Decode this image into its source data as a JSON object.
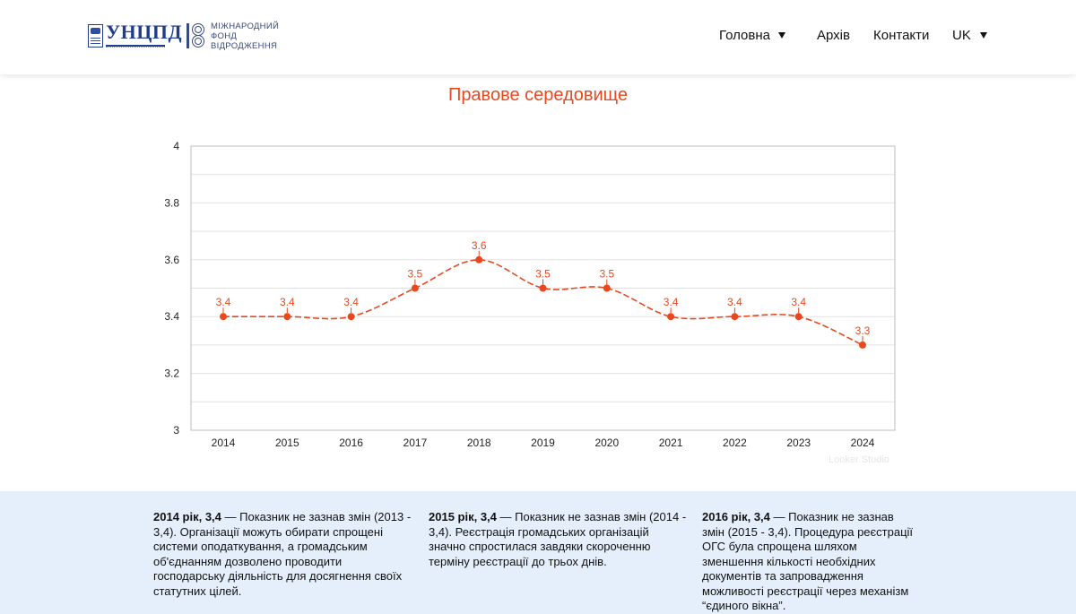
{
  "header": {
    "logo1": {
      "text": "УНЦПД",
      "icon": "book-emblem-icon"
    },
    "logo2": {
      "lines": [
        "МІЖНАРОДНИЙ",
        "ФОНД",
        "ВІДРОДЖЕННЯ"
      ],
      "icon": "irf-emblem-icon"
    },
    "nav": [
      {
        "label": "Головна",
        "has_dropdown": true
      },
      {
        "label": "Архів",
        "has_dropdown": false
      },
      {
        "label": "Контакти",
        "has_dropdown": false
      },
      {
        "label": "UK",
        "has_dropdown": true
      }
    ]
  },
  "watermark": "Looker Studio",
  "chart_data": {
    "type": "line",
    "title": "Правове середовище",
    "x": [
      "2014",
      "2015",
      "2016",
      "2017",
      "2018",
      "2019",
      "2020",
      "2021",
      "2022",
      "2023",
      "2024"
    ],
    "series": [
      {
        "values": [
          3.4,
          3.4,
          3.4,
          3.5,
          3.6,
          3.5,
          3.5,
          3.4,
          3.4,
          3.4,
          3.3
        ]
      }
    ],
    "data_labels": [
      "3.4",
      "3.4",
      "3.4",
      "3.5",
      "3.6",
      "3.5",
      "3.5",
      "3.4",
      "3.4",
      "3.4",
      "3.3"
    ],
    "ylim": [
      3,
      4
    ],
    "yticks": [
      "3",
      "3.2",
      "3.4",
      "3.6",
      "3.8",
      "4"
    ],
    "ytick_values": [
      3,
      3.2,
      3.4,
      3.6,
      3.8,
      4
    ],
    "grid": true,
    "line_style": "dashed-smooth",
    "color": "#e8481e"
  },
  "notes": [
    {
      "head": "2014 рік, 3,4",
      "text": " — Показник не зазнав змін (2013 - 3,4). Організації можуть обирати спрощені системи оподаткування, а громадським об'єднанням дозволено проводити господарську діяльність для досягнення своїх статутних цілей."
    },
    {
      "head": "2015 рік, 3,4",
      "text": " — Показник не зазнав змін (2014 - 3,4). Реєстрація громадських організацій значно спростилася завдяки скороченню терміну реєстрації до трьох днів."
    },
    {
      "head": "2016 рік, 3,4",
      "text": " — Показник не зазнав змін (2015 - 3,4). Процедура реєстрації ОГС була спрощена шляхом зменшення кількості необхідних документів та запровадження можливості реєстрації через механізм “єдиного вікна”."
    }
  ]
}
